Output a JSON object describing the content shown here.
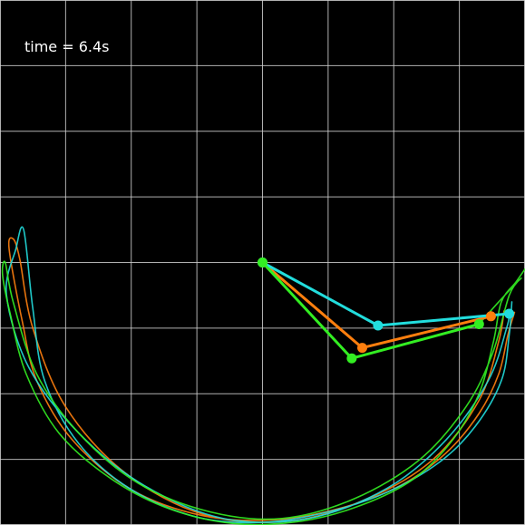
{
  "title": "",
  "time_text": "time = 6.4s",
  "colors": {
    "background": "#000000",
    "grid": "#cfcfcf",
    "text": "#ffffff",
    "pendulums": [
      "#ff7f0e",
      "#22dddd",
      "#33ee22"
    ]
  },
  "chart_data": {
    "type": "line",
    "title": "",
    "xlabel": "",
    "ylabel": "",
    "xlim": [
      -2.0,
      2.0
    ],
    "ylim": [
      -2.0,
      2.0
    ],
    "grid": true,
    "pivot": [
      0.0,
      0.0
    ],
    "pendulums": [
      {
        "color": "#ff7f0e",
        "joint": [
          0.76,
          -0.65
        ],
        "tip": [
          1.74,
          -0.41
        ],
        "trail": [
          [
            1.92,
            -0.38
          ],
          [
            1.87,
            -0.55
          ],
          [
            1.8,
            -0.85
          ],
          [
            1.65,
            -1.15
          ],
          [
            1.4,
            -1.45
          ],
          [
            1.05,
            -1.7
          ],
          [
            0.6,
            -1.87
          ],
          [
            0.1,
            -1.96
          ],
          [
            -0.45,
            -1.93
          ],
          [
            -1.0,
            -1.73
          ],
          [
            -1.45,
            -1.35
          ],
          [
            -1.72,
            -0.9
          ],
          [
            -1.83,
            -0.45
          ],
          [
            -1.93,
            0.1
          ],
          [
            -1.9,
            0.18
          ],
          [
            -1.85,
            0.03
          ],
          [
            -1.75,
            -0.5
          ],
          [
            -1.5,
            -1.1
          ],
          [
            -1.05,
            -1.6
          ],
          [
            -0.45,
            -1.92
          ],
          [
            0.2,
            -1.97
          ],
          [
            0.8,
            -1.8
          ],
          [
            1.3,
            -1.5
          ],
          [
            1.65,
            -1.05
          ],
          [
            1.8,
            -0.6
          ],
          [
            1.84,
            -0.37
          ]
        ]
      },
      {
        "color": "#22dddd",
        "joint": [
          0.88,
          -0.48
        ],
        "tip": [
          1.88,
          -0.39
        ],
        "trail": [
          [
            1.9,
            -0.3
          ],
          [
            1.88,
            -0.55
          ],
          [
            1.82,
            -0.9
          ],
          [
            1.62,
            -1.25
          ],
          [
            1.35,
            -1.52
          ],
          [
            0.95,
            -1.75
          ],
          [
            0.5,
            -1.9
          ],
          [
            0.0,
            -1.98
          ],
          [
            -0.5,
            -1.94
          ],
          [
            -1.0,
            -1.73
          ],
          [
            -1.4,
            -1.38
          ],
          [
            -1.66,
            -0.9
          ],
          [
            -1.75,
            -0.35
          ],
          [
            -1.82,
            0.25
          ],
          [
            -1.88,
            0.1
          ],
          [
            -1.95,
            -0.25
          ],
          [
            -1.78,
            -0.8
          ],
          [
            -1.4,
            -1.3
          ],
          [
            -0.9,
            -1.7
          ],
          [
            -0.3,
            -1.95
          ],
          [
            0.35,
            -1.95
          ],
          [
            0.95,
            -1.72
          ],
          [
            1.4,
            -1.35
          ],
          [
            1.72,
            -0.9
          ],
          [
            1.86,
            -0.5
          ],
          [
            1.88,
            -0.39
          ]
        ]
      },
      {
        "color": "#33ee22",
        "joint": [
          0.68,
          -0.73
        ],
        "tip": [
          1.65,
          -0.47
        ],
        "trail": [
          [
            2.0,
            -0.05
          ],
          [
            1.93,
            -0.15
          ],
          [
            1.82,
            -0.3
          ],
          [
            1.76,
            -0.6
          ],
          [
            1.65,
            -1.0
          ],
          [
            1.45,
            -1.35
          ],
          [
            1.15,
            -1.65
          ],
          [
            0.75,
            -1.85
          ],
          [
            0.3,
            -1.97
          ],
          [
            -0.2,
            -1.99
          ],
          [
            -0.7,
            -1.88
          ],
          [
            -1.15,
            -1.65
          ],
          [
            -1.55,
            -1.3
          ],
          [
            -1.8,
            -0.85
          ],
          [
            -1.92,
            -0.4
          ],
          [
            -1.98,
            -0.1
          ],
          [
            -1.96,
            0.0
          ],
          [
            -1.9,
            -0.3
          ],
          [
            -1.72,
            -0.85
          ],
          [
            -1.4,
            -1.3
          ],
          [
            -0.95,
            -1.68
          ],
          [
            -0.4,
            -1.9
          ],
          [
            0.15,
            -1.95
          ],
          [
            0.7,
            -1.8
          ],
          [
            1.2,
            -1.5
          ],
          [
            1.55,
            -1.1
          ],
          [
            1.75,
            -0.7
          ],
          [
            1.88,
            -0.25
          ],
          [
            1.97,
            -0.12
          ],
          [
            1.8,
            -0.3
          ],
          [
            1.65,
            -0.47
          ]
        ]
      }
    ]
  }
}
